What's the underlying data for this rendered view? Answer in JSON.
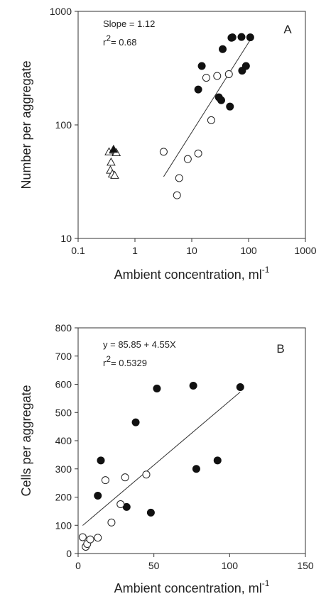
{
  "chart_data": [
    {
      "panel": "A",
      "type": "scatter",
      "xlabel": "Ambient concentration, ml",
      "xlabel_superscript": "-1",
      "ylabel": "Number per aggregate",
      "xscale": "log",
      "yscale": "log",
      "xlim": [
        0.1,
        1000
      ],
      "ylim": [
        10,
        1000
      ],
      "xticks": [
        "0.1",
        "1",
        "10",
        "100",
        "1000"
      ],
      "yticks": [
        "10",
        "100",
        "1000"
      ],
      "annotations": {
        "slope": "Slope = 1.12",
        "r2_prefix": "r",
        "r2_sup": "2",
        "r2_value": "= 0.68"
      },
      "series": [
        {
          "marker": "filled-circle",
          "x": [
            13,
            15,
            35,
            50,
            52,
            75,
            77,
            90,
            107,
            30,
            33,
            47
          ],
          "y": [
            205,
            330,
            465,
            585,
            590,
            595,
            300,
            330,
            590,
            175,
            165,
            145
          ]
        },
        {
          "marker": "open-circle",
          "x": [
            3.2,
            5.5,
            6,
            8.5,
            13,
            18,
            22,
            28,
            45
          ],
          "y": [
            58,
            24,
            34,
            50,
            56,
            260,
            110,
            270,
            280
          ]
        },
        {
          "marker": "open-triangle",
          "x": [
            0.35,
            0.38,
            0.42,
            0.47,
            0.37,
            0.4,
            0.44
          ],
          "y": [
            58,
            47,
            60,
            57,
            40,
            37,
            36
          ]
        },
        {
          "marker": "filled-triangle",
          "x": [
            0.42
          ],
          "y": [
            61
          ]
        }
      ],
      "fit_line": {
        "x": [
          3.2,
          107
        ],
        "y": [
          35,
          560
        ]
      }
    },
    {
      "panel": "B",
      "type": "scatter",
      "xlabel": "Ambient concentration, ml",
      "xlabel_superscript": "-1",
      "ylabel": "Cells per aggregate",
      "xlim": [
        0,
        150
      ],
      "ylim": [
        0,
        800
      ],
      "xticks": [
        "0",
        "50",
        "100",
        "150"
      ],
      "yticks": [
        "0",
        "100",
        "200",
        "300",
        "400",
        "500",
        "600",
        "700",
        "800"
      ],
      "annotations": {
        "equation": "y = 85.85 + 4.55X",
        "r2_prefix": "r",
        "r2_sup": "2",
        "r2_value": "= 0.5329"
      },
      "series": [
        {
          "marker": "filled-circle",
          "x": [
            13,
            15,
            32,
            38,
            48,
            52,
            76,
            78,
            92,
            107
          ],
          "y": [
            205,
            330,
            165,
            465,
            145,
            585,
            595,
            300,
            330,
            590
          ]
        },
        {
          "marker": "open-circle",
          "x": [
            3,
            5,
            6,
            8,
            13,
            18,
            22,
            28,
            31,
            45
          ],
          "y": [
            58,
            24,
            34,
            50,
            56,
            260,
            110,
            175,
            270,
            280
          ]
        }
      ],
      "fit_line": {
        "x": [
          3,
          107
        ],
        "y": [
          99.5,
          572.7
        ]
      }
    }
  ]
}
